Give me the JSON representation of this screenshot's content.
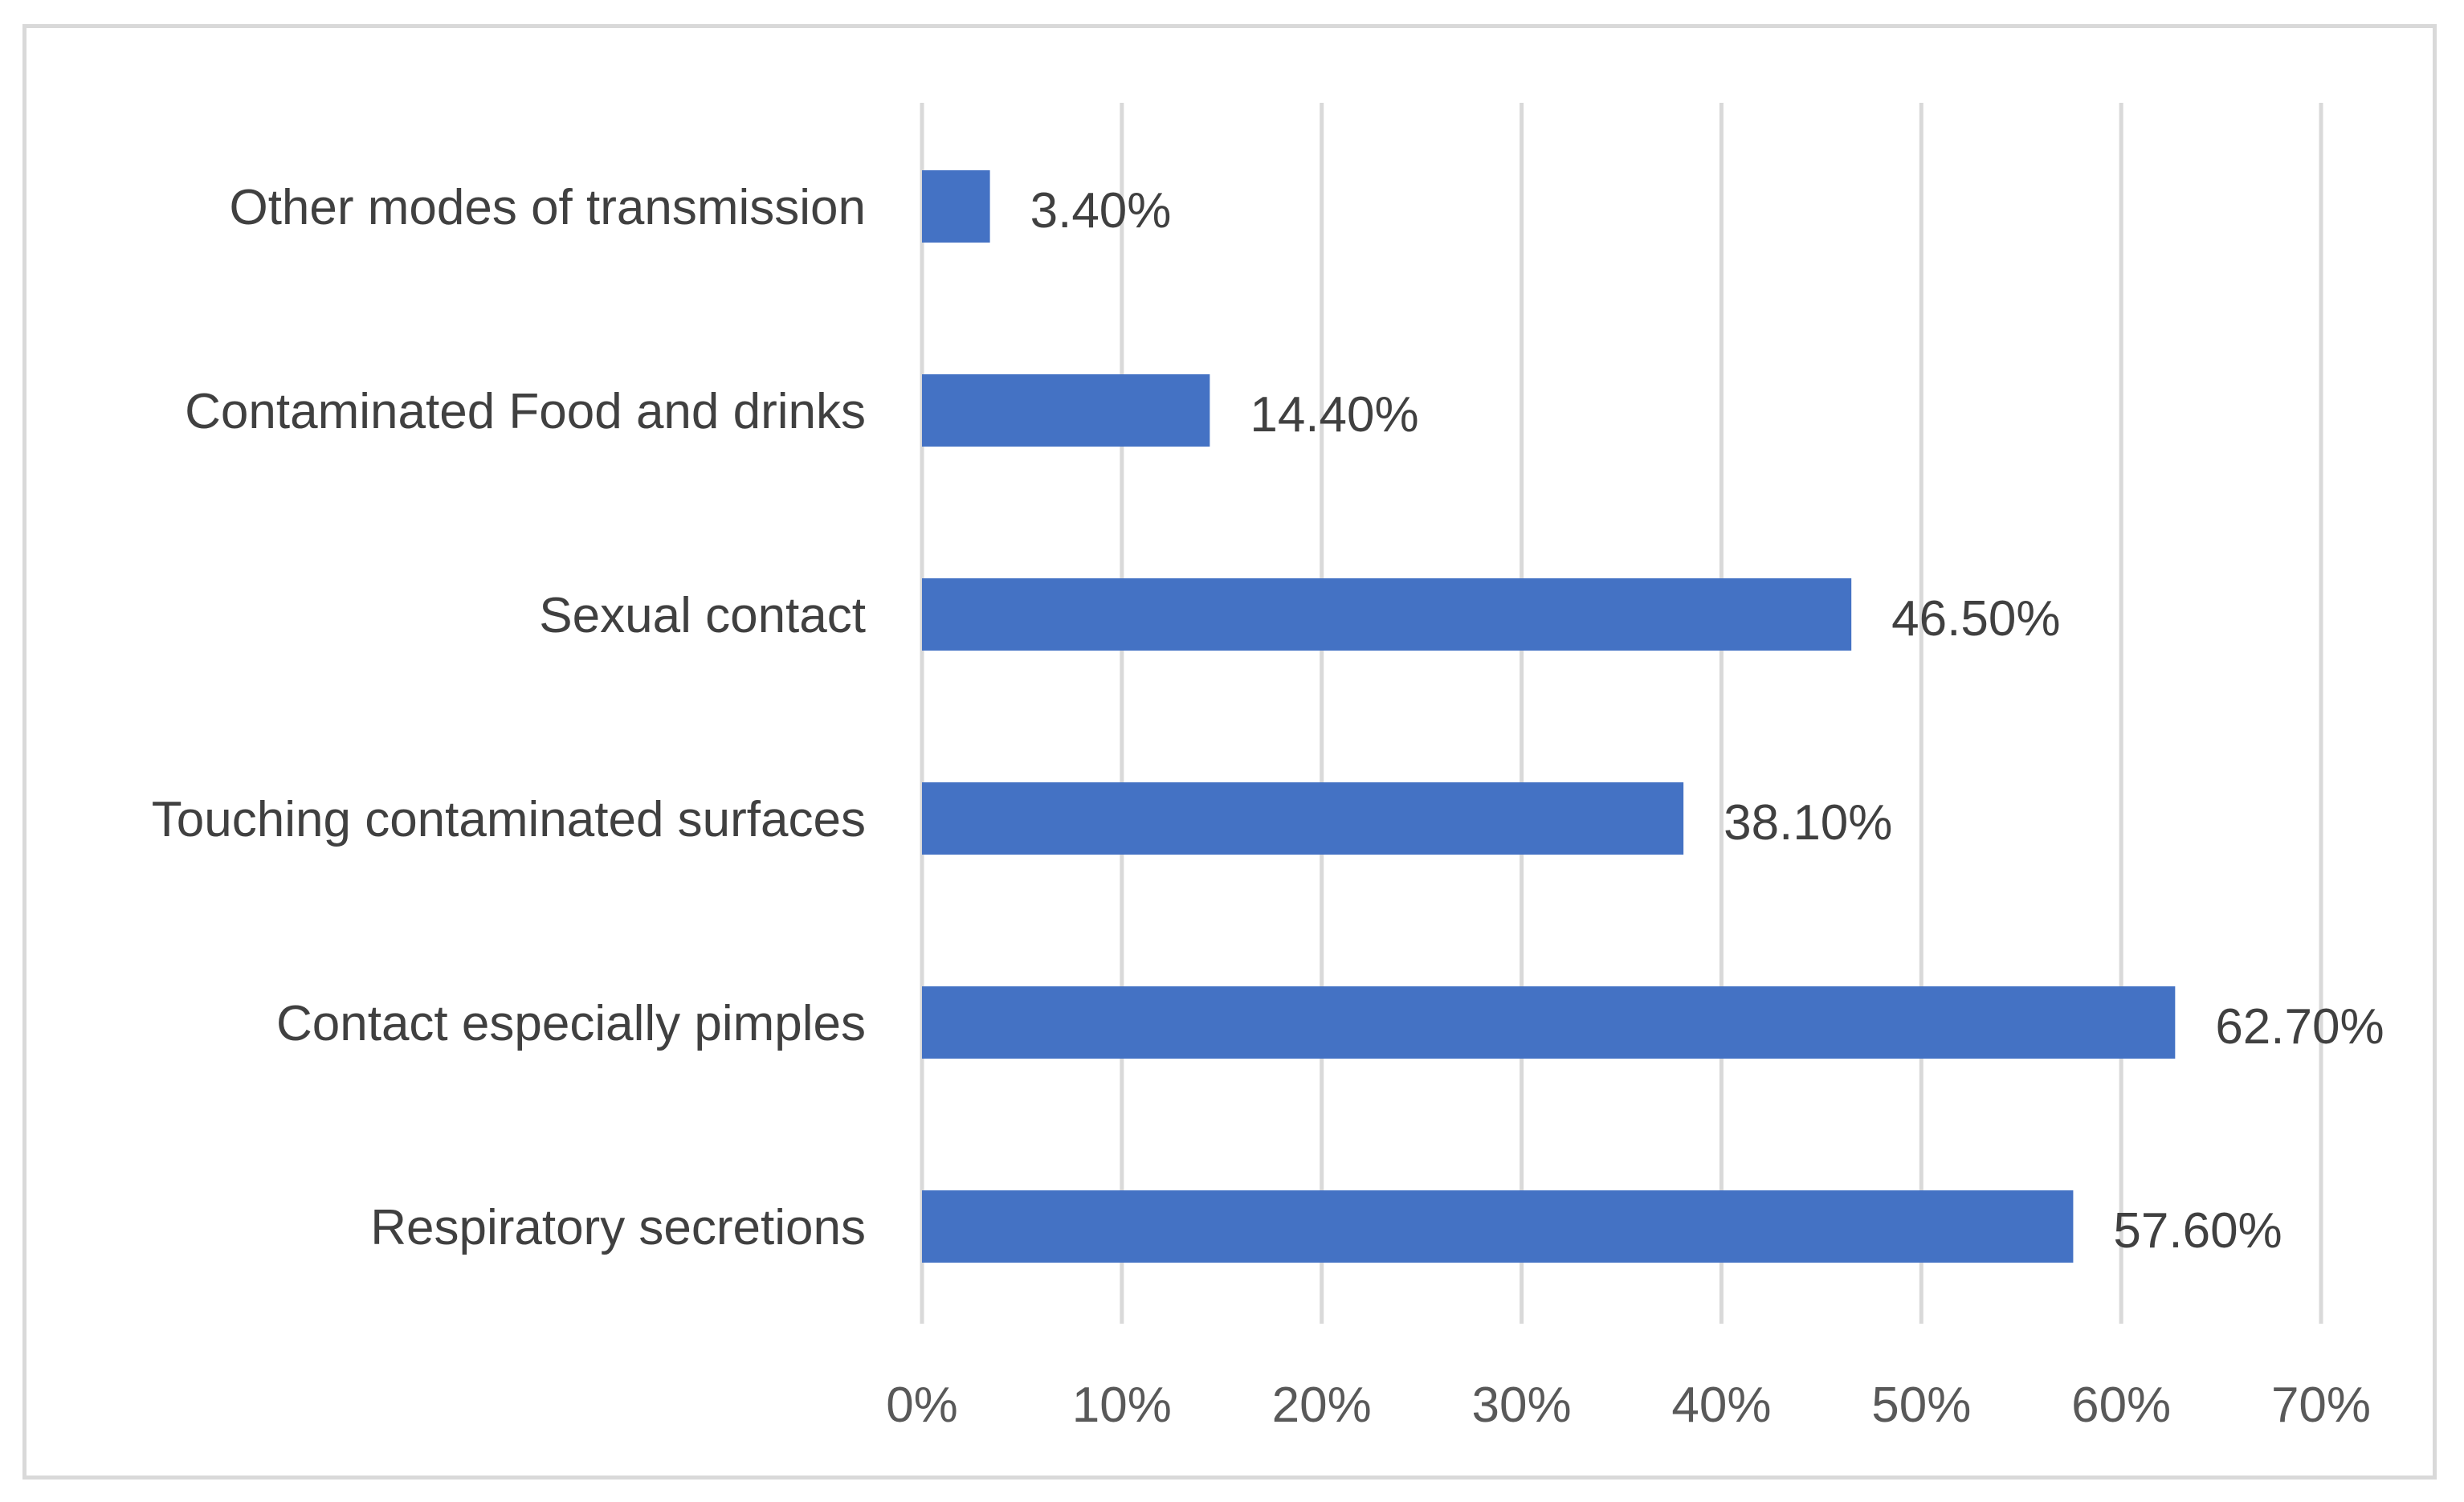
{
  "chart_data": {
    "type": "bar",
    "orientation": "horizontal",
    "title": "",
    "xlabel": "",
    "ylabel": "",
    "categories": [
      "Respiratory secretions",
      "Contact especially pimples",
      "Touching contaminated surfaces",
      "Sexual contact",
      "Contaminated Food and drinks",
      "Other modes of transmission"
    ],
    "values": [
      57.6,
      62.7,
      38.1,
      46.5,
      14.4,
      3.4
    ],
    "data_labels": [
      "57.60%",
      "62.70%",
      "38.10%",
      "46.50%",
      "14.40%",
      "3.40%"
    ],
    "xlim": [
      0,
      70
    ],
    "ticks": [
      0,
      10,
      20,
      30,
      40,
      50,
      60,
      70
    ],
    "tick_labels": [
      "0%",
      "10%",
      "20%",
      "30%",
      "40%",
      "50%",
      "60%",
      "70%"
    ],
    "grid": "vertical",
    "legend": "none",
    "bar_color": "#4472c4"
  }
}
